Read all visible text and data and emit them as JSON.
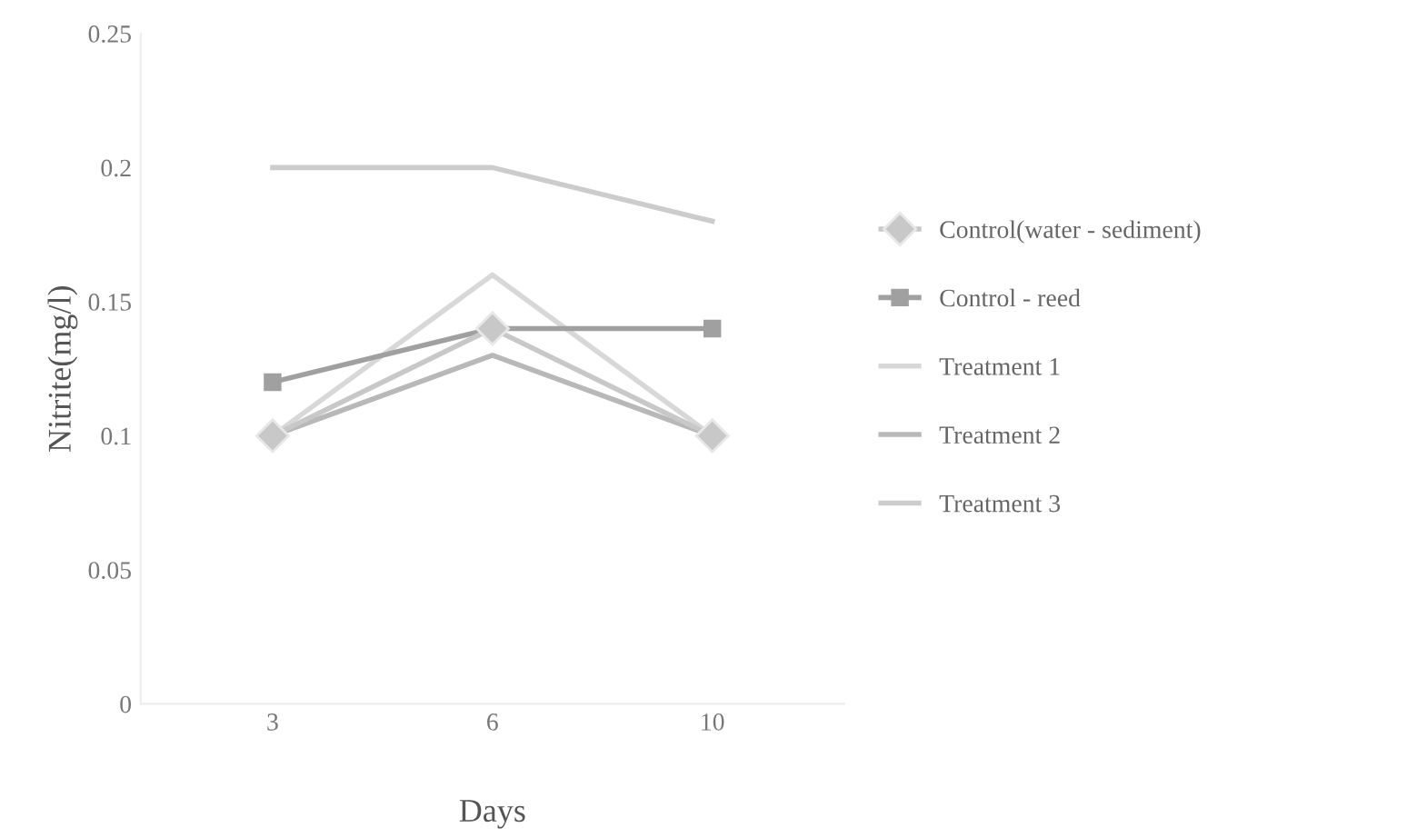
{
  "chart_data": {
    "type": "line",
    "xlabel": "Days",
    "ylabel": "Nitrite(mg/l)",
    "categories": [
      "3",
      "6",
      "10"
    ],
    "series": [
      {
        "name": "Control(water - sediment)",
        "color": "#c8c8c8",
        "marker": "diamond",
        "values": [
          0.1,
          0.14,
          0.1
        ]
      },
      {
        "name": "Control - reed",
        "color": "#a0a0a0",
        "marker": "square",
        "values": [
          0.12,
          0.14,
          0.14
        ]
      },
      {
        "name": "Treatment 1",
        "color": "#d8d8d8",
        "marker": "none",
        "values": [
          0.1,
          0.16,
          0.1
        ]
      },
      {
        "name": "Treatment 2",
        "color": "#b8b8b8",
        "marker": "none",
        "values": [
          0.1,
          0.13,
          0.1
        ]
      },
      {
        "name": "Treatment 3",
        "color": "#cccccc",
        "marker": "none",
        "values": [
          0.2,
          0.2,
          0.18
        ]
      }
    ],
    "ylim": [
      0,
      0.25
    ],
    "yticks": [
      0,
      0.05,
      0.1,
      0.15,
      0.2,
      0.25
    ],
    "grid": false,
    "legend": "right"
  }
}
